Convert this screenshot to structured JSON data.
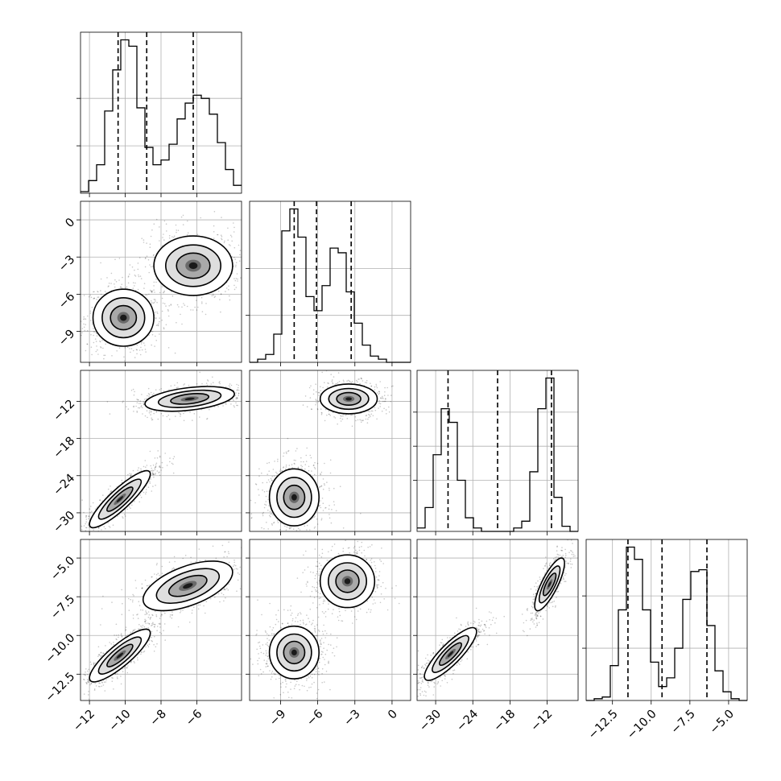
{
  "chart_data": {
    "type": "corner",
    "grid": true,
    "parameters": [
      {
        "index": 0,
        "range": [
          -12.5,
          -3.5
        ],
        "ticks": [
          -12,
          -10,
          -8,
          -6
        ],
        "tick_labels": [
          "−12",
          "−10",
          "−8",
          "−6"
        ],
        "quantiles": [
          -10.4,
          -8.8,
          -6.2
        ],
        "histogram": {
          "bin_start": -12.5,
          "bin_width": 0.45,
          "counts": [
            0.01,
            0.08,
            0.18,
            0.52,
            0.78,
            0.97,
            0.93,
            0.54,
            0.29,
            0.18,
            0.21,
            0.31,
            0.47,
            0.57,
            0.62,
            0.6,
            0.5,
            0.32,
            0.15,
            0.05
          ],
          "yticks": [
            0.3,
            0.6
          ]
        }
      },
      {
        "index": 1,
        "range": [
          -11.5,
          1.5
        ],
        "ticks": [
          -9,
          -6,
          -3,
          0
        ],
        "tick_labels": [
          "−9",
          "−6",
          "−3",
          "0"
        ],
        "quantiles": [
          -7.9,
          -6.1,
          -3.3
        ],
        "histogram": {
          "bin_start": -11.5,
          "bin_width": 0.65,
          "counts": [
            0.0,
            0.02,
            0.05,
            0.18,
            0.84,
            0.98,
            0.8,
            0.42,
            0.33,
            0.49,
            0.73,
            0.7,
            0.45,
            0.25,
            0.11,
            0.04,
            0.02,
            0.0,
            0.0,
            0.0
          ],
          "yticks": [
            0.3,
            0.6
          ]
        }
      },
      {
        "index": 2,
        "range": [
          -33.0,
          -7.0
        ],
        "ticks": [
          -30,
          -24,
          -18,
          -12
        ],
        "tick_labels": [
          "−30",
          "−24",
          "−18",
          "−12"
        ],
        "quantiles": [
          -28.0,
          -20.0,
          -11.3
        ],
        "histogram": {
          "bin_start": -33.0,
          "bin_width": 1.3,
          "counts": [
            0.02,
            0.14,
            0.45,
            0.72,
            0.64,
            0.3,
            0.08,
            0.02,
            0.0,
            0.0,
            0.0,
            0.0,
            0.02,
            0.06,
            0.35,
            0.72,
            0.9,
            0.2,
            0.03,
            0.0
          ],
          "yticks": [
            0.3,
            0.5,
            0.7
          ]
        }
      },
      {
        "index": 3,
        "range": [
          -14.2,
          -3.8
        ],
        "ticks": [
          -12.5,
          -10.0,
          -7.5,
          -5.0
        ],
        "tick_labels": [
          "−12.5",
          "−10.0",
          "−7.5",
          "−5.0"
        ],
        "quantiles": [
          -11.5,
          -9.3,
          -6.4
        ],
        "histogram": {
          "bin_start": -14.2,
          "bin_width": 0.52,
          "counts": [
            0.0,
            0.01,
            0.02,
            0.2,
            0.52,
            0.88,
            0.81,
            0.52,
            0.22,
            0.08,
            0.13,
            0.3,
            0.58,
            0.74,
            0.75,
            0.43,
            0.17,
            0.05,
            0.01,
            0.0
          ],
          "yticks": [
            0.3,
            0.6
          ]
        }
      }
    ],
    "joint": [
      {
        "row": 1,
        "col": 0,
        "modes": [
          {
            "center": [
              -10.1,
              -7.9
            ],
            "sx": 0.85,
            "sy": 1.15,
            "corr": 0.0,
            "weight": 0.55
          },
          {
            "center": [
              -6.2,
              -3.7
            ],
            "sx": 1.1,
            "sy": 1.2,
            "corr": 0.0,
            "weight": 0.45
          }
        ]
      },
      {
        "row": 2,
        "col": 0,
        "modes": [
          {
            "center": [
              -10.3,
              -27.8
            ],
            "sx": 0.85,
            "sy": 2.3,
            "corr": 0.88,
            "weight": 0.55
          },
          {
            "center": [
              -6.4,
              -11.6
            ],
            "sx": 1.25,
            "sy": 1.0,
            "corr": 0.4,
            "weight": 0.45
          }
        ]
      },
      {
        "row": 2,
        "col": 1,
        "modes": [
          {
            "center": [
              -7.9,
              -27.5
            ],
            "sx": 1.0,
            "sy": 2.3,
            "corr": 0.0,
            "weight": 0.55
          },
          {
            "center": [
              -3.5,
              -11.6
            ],
            "sx": 1.15,
            "sy": 1.2,
            "corr": 0.0,
            "weight": 0.45
          }
        ]
      },
      {
        "row": 3,
        "col": 0,
        "modes": [
          {
            "center": [
              -10.3,
              -11.3
            ],
            "sx": 0.85,
            "sy": 0.85,
            "corr": 0.85,
            "weight": 0.55
          },
          {
            "center": [
              -6.5,
              -6.8
            ],
            "sx": 1.25,
            "sy": 0.8,
            "corr": 0.55,
            "weight": 0.45
          }
        ]
      },
      {
        "row": 3,
        "col": 1,
        "modes": [
          {
            "center": [
              -7.9,
              -11.1
            ],
            "sx": 1.0,
            "sy": 0.85,
            "corr": 0.0,
            "weight": 0.55
          },
          {
            "center": [
              -3.6,
              -6.5
            ],
            "sx": 1.1,
            "sy": 0.85,
            "corr": 0.0,
            "weight": 0.45
          }
        ]
      },
      {
        "row": 3,
        "col": 2,
        "modes": [
          {
            "center": [
              -27.6,
              -11.2
            ],
            "sx": 2.1,
            "sy": 0.85,
            "corr": 0.85,
            "weight": 0.55
          },
          {
            "center": [
              -11.6,
              -6.7
            ],
            "sx": 1.2,
            "sy": 0.85,
            "corr": 0.8,
            "weight": 0.45
          }
        ]
      }
    ]
  }
}
